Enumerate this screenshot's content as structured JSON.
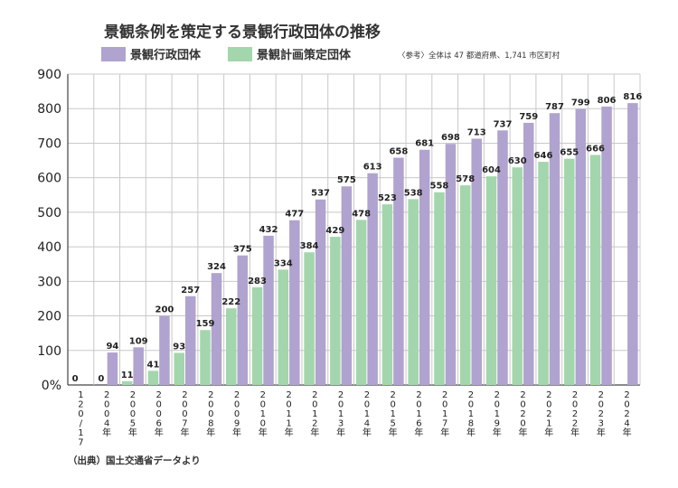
{
  "chart_data": {
    "type": "bar",
    "title": "景観条例を策定する景観行政団体の推移",
    "note": "〈参考〉全体は 47 都道府県、1,741 市区町村",
    "source": "（出典）国土交通省データより",
    "ylim": [
      0,
      900
    ],
    "y_ticks": [
      "0%",
      "100",
      "200",
      "300",
      "400",
      "500",
      "600",
      "700",
      "800",
      "900"
    ],
    "grid": true,
    "colors": {
      "series1": "#b0a3cf",
      "series2": "#a3d6ac"
    },
    "categories": [
      "1\n2\n0\n/\n1\n7",
      "2\n0\n0\n4\n年",
      "2\n0\n0\n5\n年",
      "2\n0\n0\n6\n年",
      "2\n0\n0\n7\n年",
      "2\n0\n0\n8\n年",
      "2\n0\n0\n9\n年",
      "2\n0\n1\n0\n年",
      "2\n0\n1\n1\n年",
      "2\n0\n1\n2\n年",
      "2\n0\n1\n3\n年",
      "2\n0\n1\n4\n年",
      "2\n0\n1\n5\n年",
      "2\n0\n1\n6\n年",
      "2\n0\n1\n7\n年",
      "2\n0\n1\n8\n年",
      "2\n0\n1\n9\n年",
      "2\n0\n2\n0\n年",
      "2\n0\n2\n1\n年",
      "2\n0\n2\n2\n年",
      "2\n0\n2\n3\n年",
      "2\n0\n2\n4\n年"
    ],
    "series": [
      {
        "name": "景観行政団体",
        "values": [
          0,
          94,
          109,
          200,
          257,
          324,
          375,
          432,
          477,
          537,
          575,
          613,
          658,
          681,
          698,
          713,
          737,
          759,
          787,
          799,
          806,
          816
        ],
        "labels": [
          "",
          "94",
          "109",
          "200",
          "257",
          "324",
          "375",
          "432",
          "477",
          "537",
          "575",
          "613",
          "658",
          "681",
          "698",
          "713",
          "737",
          "759",
          "787",
          "799",
          "806",
          "816"
        ]
      },
      {
        "name": "景観計画策定団体",
        "values": [
          0,
          0,
          11,
          41,
          93,
          159,
          222,
          283,
          334,
          384,
          429,
          478,
          523,
          538,
          558,
          578,
          604,
          630,
          646,
          655,
          666,
          null
        ],
        "labels": [
          "0",
          "0",
          "11",
          "41",
          "93",
          "159",
          "222",
          "283",
          "334",
          "384",
          "429",
          "478",
          "523",
          "538",
          "558",
          "578",
          "604",
          "630",
          "646",
          "655",
          "666",
          ""
        ]
      }
    ]
  }
}
